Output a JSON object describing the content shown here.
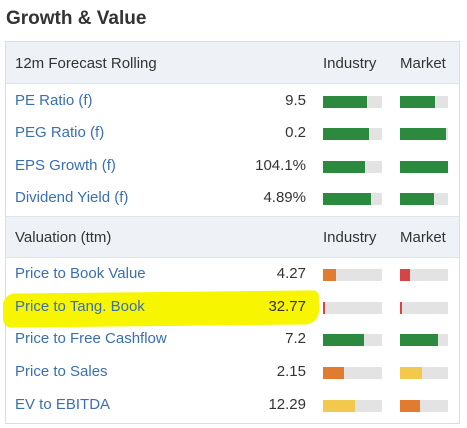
{
  "title": "Growth & Value",
  "colors": {
    "green": "#2b8a3e",
    "orange": "#e07b2f",
    "yellow": "#f2c94c",
    "red": "#d64545",
    "track": "#e3e3e3",
    "link": "#3a6fb0",
    "highlight": "#f7f500"
  },
  "sections": [
    {
      "header": {
        "label": "12m Forecast Rolling",
        "industry": "Industry",
        "market": "Market"
      },
      "rows": [
        {
          "name": "PE Ratio (f)",
          "value": "9.5",
          "industry": {
            "level": 0.75,
            "color": "#2b8a3e"
          },
          "market": {
            "level": 0.72,
            "color": "#2b8a3e"
          }
        },
        {
          "name": "PEG Ratio (f)",
          "value": "0.2",
          "industry": {
            "level": 0.78,
            "color": "#2b8a3e"
          },
          "market": {
            "level": 0.96,
            "color": "#2b8a3e"
          }
        },
        {
          "name": "EPS Growth (f)",
          "value": "104.1%",
          "industry": {
            "level": 0.72,
            "color": "#2b8a3e"
          },
          "market": {
            "level": 1.0,
            "color": "#2b8a3e"
          }
        },
        {
          "name": "Dividend Yield (f)",
          "value": "4.89%",
          "industry": {
            "level": 0.82,
            "color": "#2b8a3e"
          },
          "market": {
            "level": 0.7,
            "color": "#2b8a3e"
          }
        }
      ]
    },
    {
      "header": {
        "label": "Valuation (ttm)",
        "industry": "Industry",
        "market": "Market"
      },
      "rows": [
        {
          "name": "Price to Book Value",
          "value": "4.27",
          "industry": {
            "level": 0.22,
            "color": "#e07b2f"
          },
          "market": {
            "level": 0.2,
            "color": "#d64545"
          }
        },
        {
          "name": "Price to Tang. Book",
          "value": "32.77",
          "industry": {
            "level": 0.04,
            "color": "#d64545"
          },
          "market": {
            "level": 0.05,
            "color": "#d64545"
          }
        },
        {
          "name": "Price to Free Cashflow",
          "value": "7.2",
          "industry": {
            "level": 0.7,
            "color": "#2b8a3e"
          },
          "market": {
            "level": 0.8,
            "color": "#2b8a3e"
          }
        },
        {
          "name": "Price to Sales",
          "value": "2.15",
          "industry": {
            "level": 0.35,
            "color": "#e07b2f"
          },
          "market": {
            "level": 0.46,
            "color": "#f2c94c"
          }
        },
        {
          "name": "EV to EBITDA",
          "value": "12.29",
          "industry": {
            "level": 0.55,
            "color": "#f2c94c"
          },
          "market": {
            "level": 0.42,
            "color": "#e07b2f"
          }
        }
      ]
    }
  ]
}
